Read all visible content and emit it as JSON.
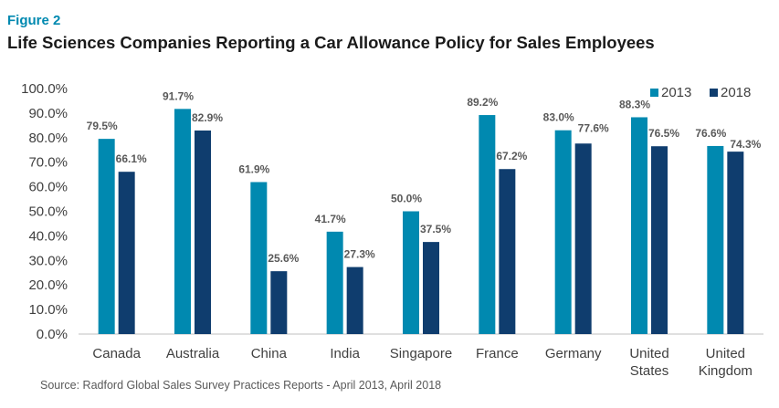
{
  "figure_label": "Figure 2",
  "source": "Source: Radford Global Sales Survey Practices Reports - April 2013, April 2018",
  "colors": {
    "series_2013": "#0089b0",
    "series_2018": "#0f3d6e",
    "axis": "#bfbfbf",
    "leader": "#a6a6a6"
  },
  "chart_data": {
    "type": "bar",
    "title": "Life Sciences Companies Reporting a Car Allowance Policy for Sales Employees",
    "categories": [
      [
        "Canada"
      ],
      [
        "Australia"
      ],
      [
        "China"
      ],
      [
        "India"
      ],
      [
        "Singapore"
      ],
      [
        "France"
      ],
      [
        "Germany"
      ],
      [
        "United",
        "States"
      ],
      [
        "United",
        "Kingdom"
      ]
    ],
    "series": [
      {
        "name": "2013",
        "values": [
          79.5,
          91.7,
          61.9,
          41.7,
          50.0,
          89.2,
          83.0,
          88.3,
          76.6
        ],
        "labels": [
          "79.5%",
          "91.7%",
          "61.9%",
          "41.7%",
          "50.0%",
          "89.2%",
          "83.0%",
          "88.3%",
          "76.6%"
        ]
      },
      {
        "name": "2018",
        "values": [
          66.1,
          82.9,
          25.6,
          27.3,
          37.5,
          67.2,
          77.6,
          76.5,
          74.3
        ],
        "labels": [
          "66.1%",
          "82.9%",
          "25.6%",
          "27.3%",
          "37.5%",
          "67.2%",
          "77.6%",
          "76.5%",
          "74.3%"
        ]
      }
    ],
    "y_ticks": [
      "0.0%",
      "10.0%",
      "20.0%",
      "30.0%",
      "40.0%",
      "50.0%",
      "60.0%",
      "70.0%",
      "80.0%",
      "90.0%",
      "100.0%"
    ],
    "ylim": [
      0,
      100
    ],
    "xlabel": "",
    "ylabel": "",
    "grid": false,
    "legend_position": "top-right"
  }
}
